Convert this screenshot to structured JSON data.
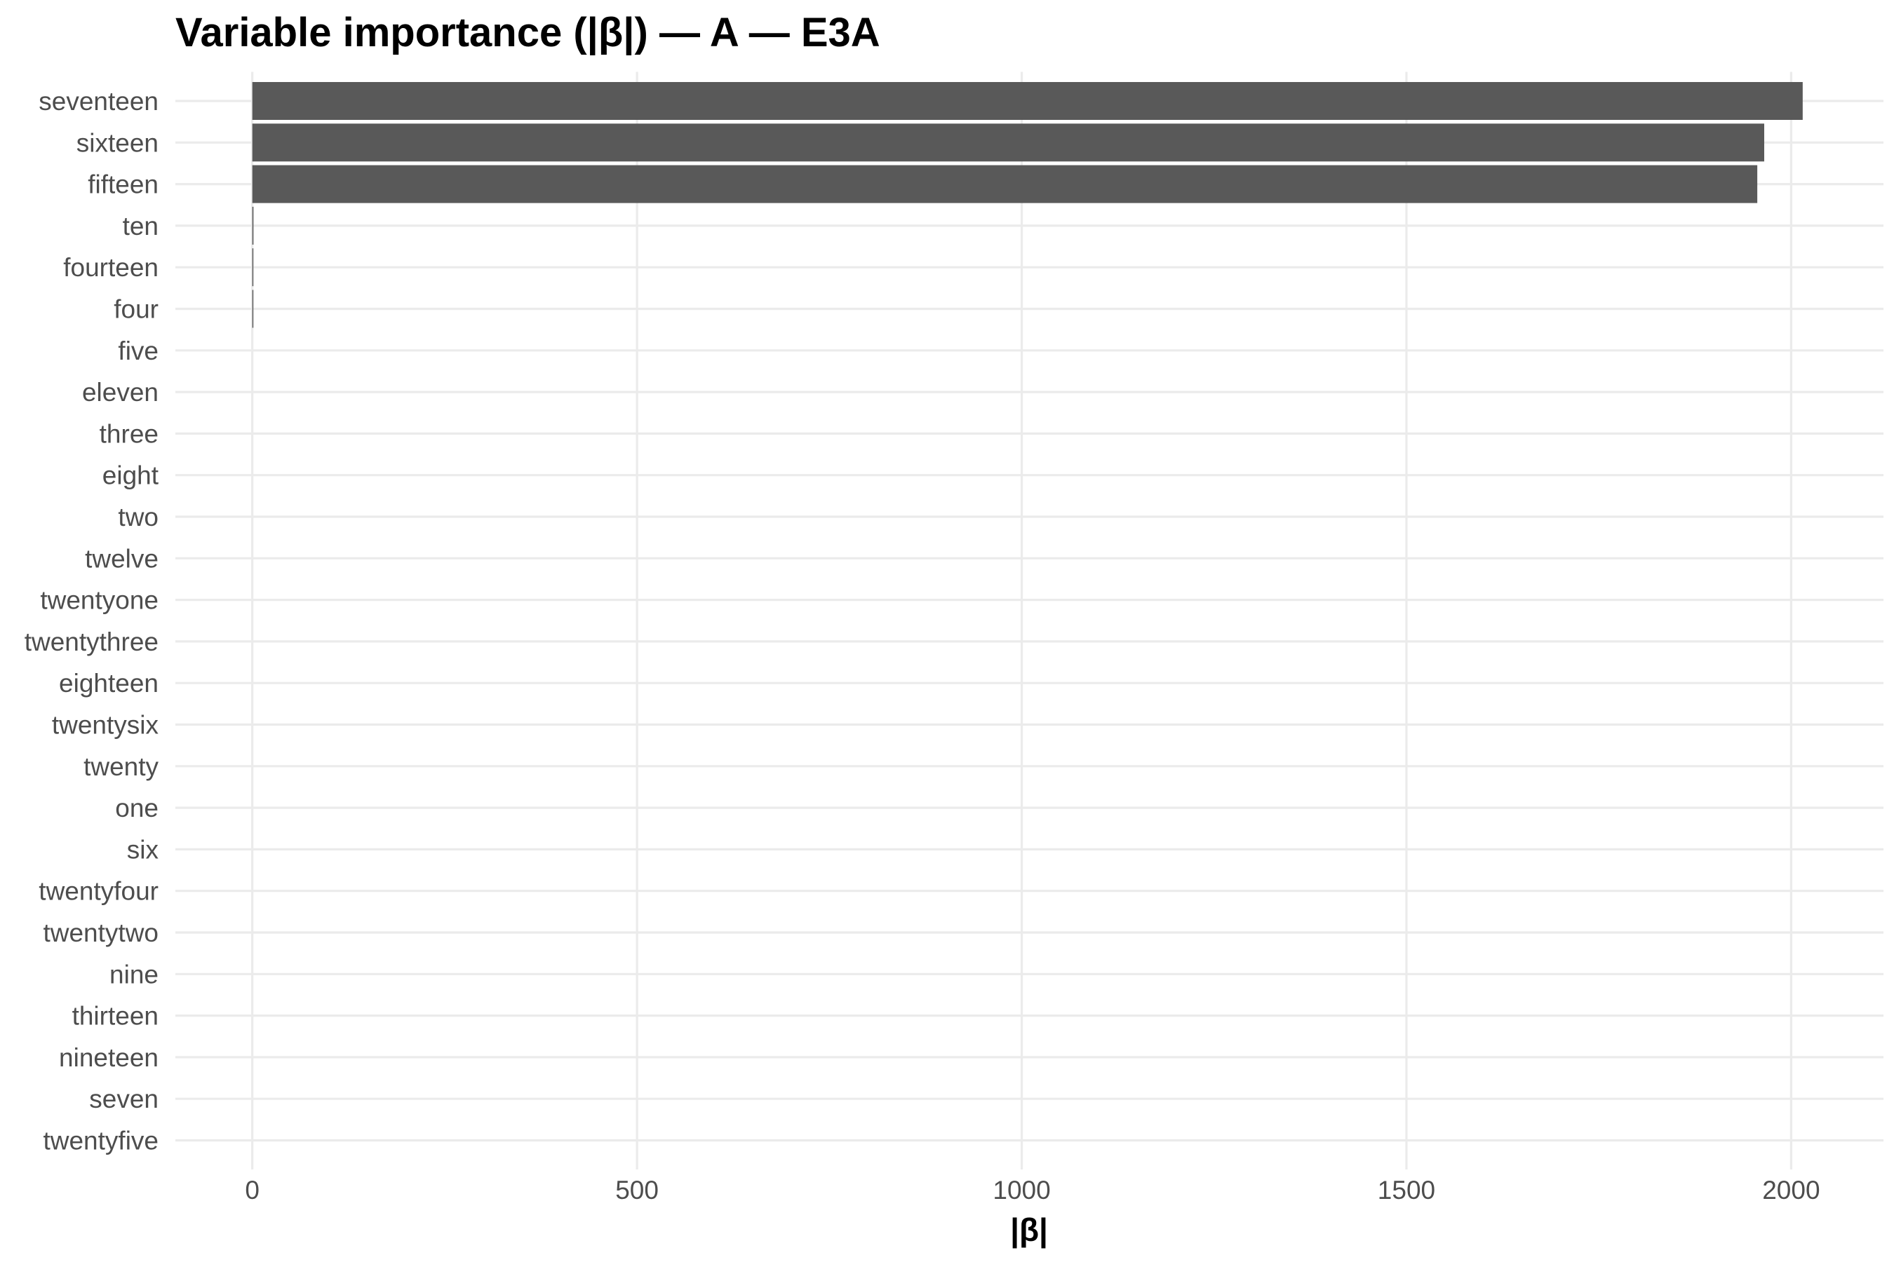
{
  "chart_data": {
    "type": "bar",
    "orientation": "horizontal",
    "title": "Variable importance (|β|) — A — E3A",
    "xlabel": "|β|",
    "ylabel": "",
    "categories": [
      "seventeen",
      "sixteen",
      "fifteen",
      "ten",
      "fourteen",
      "four",
      "five",
      "eleven",
      "three",
      "eight",
      "two",
      "twelve",
      "twentyone",
      "twentythree",
      "eighteen",
      "twentysix",
      "twenty",
      "one",
      "six",
      "twentyfour",
      "twentytwo",
      "nine",
      "thirteen",
      "nineteen",
      "seven",
      "twentyfive"
    ],
    "values": [
      2015,
      1965,
      1956,
      1.5,
      1.2,
      0.8,
      0,
      0,
      0,
      0,
      0,
      0,
      0,
      0,
      0,
      0,
      0,
      0,
      0,
      0,
      0,
      0,
      0,
      0,
      0,
      0
    ],
    "xlim": [
      -100,
      2120
    ],
    "xticks": [
      0,
      500,
      1000,
      1500,
      2000
    ],
    "grid": true,
    "legend": "none",
    "bar_color": "#595959"
  }
}
